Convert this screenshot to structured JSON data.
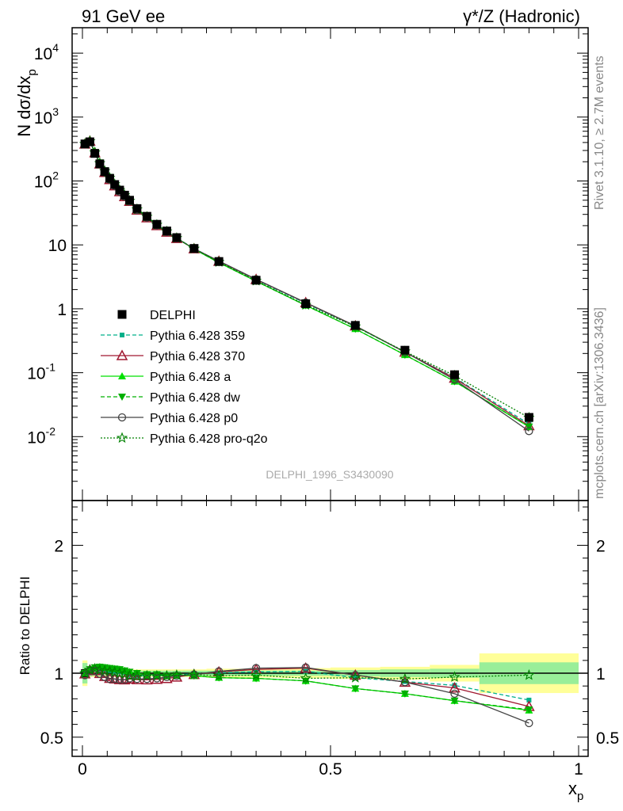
{
  "header": {
    "left": "91 GeV ee",
    "right": "γ*/Z (Hadronic)"
  },
  "side_labels": {
    "rivet": "Rivet 3.1.10, ≥ 2.7M events",
    "mcplots": "mcplots.cern.ch [arXiv:1306.3436]"
  },
  "analysis_label": "DELPHI_1996_S3430090",
  "chart_data": [
    {
      "type": "scatter",
      "panel": "main",
      "ylabel": "N dσ/dx_p",
      "yscale": "log",
      "ylim": [
        0.001,
        25000
      ],
      "xlim": [
        -0.025,
        1.0
      ],
      "y_ticks": [
        "10^-2",
        "10^-1",
        "1",
        "10",
        "10^2",
        "10^3",
        "10^4"
      ],
      "legend_position": "middle-left",
      "x": [
        0.005,
        0.015,
        0.025,
        0.035,
        0.045,
        0.055,
        0.065,
        0.075,
        0.085,
        0.095,
        0.11,
        0.13,
        0.15,
        0.17,
        0.19,
        0.225,
        0.275,
        0.35,
        0.45,
        0.55,
        0.65,
        0.75,
        0.9
      ],
      "series": [
        {
          "name": "DELPHI",
          "color": "#000000",
          "marker": "square",
          "values": [
            380,
            410,
            270,
            185,
            140,
            110,
            88,
            72,
            60,
            50,
            37,
            28,
            21,
            16.5,
            13,
            8.8,
            5.5,
            2.8,
            1.2,
            0.55,
            0.225,
            0.093,
            0.02
          ]
        },
        {
          "name": "Pythia 6.428 359",
          "color": "#00b08a",
          "marker": "small-square",
          "dash": "dashed",
          "values": [
            378,
            420,
            279,
            191,
            144,
            113,
            90,
            73,
            60,
            49,
            36,
            27.5,
            20.6,
            16.2,
            12.8,
            8.8,
            5.52,
            2.83,
            1.22,
            0.53,
            0.21,
            0.084,
            0.0158
          ]
        },
        {
          "name": "Pythia 6.428 370",
          "color": "#a01830",
          "marker": "open-triangle",
          "dash": "solid",
          "values": [
            378,
            420,
            276,
            185,
            136,
            105,
            84,
            68,
            57,
            48,
            35,
            26.5,
            20,
            15.8,
            12.6,
            8.7,
            5.55,
            2.88,
            1.25,
            0.54,
            0.21,
            0.082,
            0.0148
          ]
        },
        {
          "name": "Pythia 6.428 a",
          "color": "#00e000",
          "marker": "triangle",
          "dash": "solid",
          "values": [
            380,
            422,
            282,
            194,
            146,
            115,
            91,
            74,
            61,
            50,
            37,
            27.7,
            20.8,
            16.2,
            12.8,
            8.6,
            5.3,
            2.7,
            1.13,
            0.485,
            0.19,
            0.073,
            0.0142
          ]
        },
        {
          "name": "Pythia 6.428 dw",
          "color": "#00b000",
          "marker": "down-triangle",
          "dash": "dashed",
          "values": [
            380,
            422,
            282,
            194,
            146,
            115,
            91,
            74,
            61,
            50,
            37,
            27.7,
            20.8,
            16.2,
            12.8,
            8.6,
            5.3,
            2.7,
            1.13,
            0.485,
            0.19,
            0.073,
            0.0143
          ]
        },
        {
          "name": "Pythia 6.428 p0",
          "color": "#444444",
          "marker": "open-circle",
          "dash": "solid",
          "values": [
            375,
            418,
            275,
            184,
            136,
            105,
            84,
            68,
            57,
            48,
            35,
            26.7,
            20.2,
            16,
            12.7,
            8.7,
            5.6,
            2.9,
            1.25,
            0.54,
            0.21,
            0.078,
            0.0122
          ]
        },
        {
          "name": "Pythia 6.428 pro-q2o",
          "color": "#008000",
          "marker": "open-star",
          "dash": "dotted",
          "values": [
            380,
            420,
            280,
            190,
            143,
            112,
            89,
            72,
            60,
            49,
            36,
            27.5,
            20.6,
            16.2,
            12.8,
            8.7,
            5.4,
            2.75,
            1.15,
            0.53,
            0.215,
            0.09,
            0.0198
          ]
        }
      ]
    },
    {
      "type": "line",
      "panel": "ratio",
      "ylabel": "Ratio to DELPHI",
      "xlabel": "x_p",
      "ylim": [
        0.35,
        2.35
      ],
      "y_ticks": [
        "0.5",
        "1",
        "2"
      ],
      "x_ticks": [
        "0",
        "0.5",
        "1"
      ],
      "band_edges": [
        0,
        0.01,
        0.02,
        0.03,
        0.04,
        0.05,
        0.06,
        0.07,
        0.08,
        0.09,
        0.1,
        0.12,
        0.14,
        0.16,
        0.18,
        0.2,
        0.25,
        0.3,
        0.4,
        0.5,
        0.6,
        0.7,
        0.8,
        1.0
      ],
      "band_inner": [
        0.08,
        0.025,
        0.02,
        0.02,
        0.02,
        0.02,
        0.02,
        0.02,
        0.02,
        0.02,
        0.02,
        0.02,
        0.02,
        0.02,
        0.02,
        0.02,
        0.02,
        0.02,
        0.02,
        0.025,
        0.03,
        0.035,
        0.085
      ],
      "band_outer": [
        0.1,
        0.03,
        0.03,
        0.03,
        0.03,
        0.03,
        0.03,
        0.03,
        0.03,
        0.03,
        0.03,
        0.03,
        0.03,
        0.03,
        0.03,
        0.03,
        0.035,
        0.035,
        0.04,
        0.045,
        0.05,
        0.065,
        0.155
      ],
      "x": [
        0.005,
        0.015,
        0.025,
        0.035,
        0.045,
        0.055,
        0.065,
        0.075,
        0.085,
        0.095,
        0.11,
        0.13,
        0.15,
        0.17,
        0.19,
        0.225,
        0.275,
        0.35,
        0.45,
        0.55,
        0.65,
        0.75,
        0.9
      ],
      "series": [
        {
          "name": "Pythia 6.428 359",
          "values": [
            0.995,
            1.025,
            1.035,
            1.03,
            1.025,
            1.02,
            1.015,
            1.01,
            1.005,
            0.985,
            0.98,
            0.98,
            0.98,
            0.982,
            0.985,
            0.998,
            1.003,
            1.01,
            1.015,
            0.965,
            0.935,
            0.905,
            0.79
          ]
        },
        {
          "name": "Pythia 6.428 370",
          "values": [
            0.995,
            1.025,
            1.02,
            0.998,
            0.975,
            0.96,
            0.955,
            0.95,
            0.948,
            0.955,
            0.95,
            0.948,
            0.952,
            0.958,
            0.97,
            0.99,
            1.01,
            1.03,
            1.04,
            0.985,
            0.93,
            0.885,
            0.74
          ]
        },
        {
          "name": "Pythia 6.428 a",
          "values": [
            1.0,
            1.03,
            1.045,
            1.05,
            1.045,
            1.04,
            1.035,
            1.03,
            1.02,
            1.01,
            1.0,
            0.99,
            0.99,
            0.98,
            0.985,
            0.98,
            0.965,
            0.96,
            0.94,
            0.88,
            0.84,
            0.785,
            0.71
          ]
        },
        {
          "name": "Pythia 6.428 dw",
          "values": [
            1.0,
            1.03,
            1.045,
            1.05,
            1.045,
            1.04,
            1.035,
            1.03,
            1.02,
            1.01,
            1.0,
            0.99,
            0.99,
            0.98,
            0.985,
            0.98,
            0.965,
            0.96,
            0.94,
            0.88,
            0.84,
            0.785,
            0.715
          ]
        },
        {
          "name": "Pythia 6.428 p0",
          "values": [
            0.985,
            1.02,
            1.018,
            0.995,
            0.97,
            0.955,
            0.955,
            0.95,
            0.95,
            0.96,
            0.955,
            0.955,
            0.96,
            0.97,
            0.98,
            0.99,
            1.015,
            1.04,
            1.045,
            0.985,
            0.93,
            0.84,
            0.61
          ]
        },
        {
          "name": "Pythia 6.428 pro-q2o",
          "values": [
            1.0,
            1.025,
            1.035,
            1.025,
            1.02,
            1.015,
            1.01,
            1.0,
            0.995,
            0.98,
            0.975,
            0.98,
            0.98,
            0.98,
            0.985,
            0.99,
            0.98,
            0.985,
            0.96,
            0.965,
            0.955,
            0.97,
            0.985
          ]
        }
      ]
    }
  ]
}
